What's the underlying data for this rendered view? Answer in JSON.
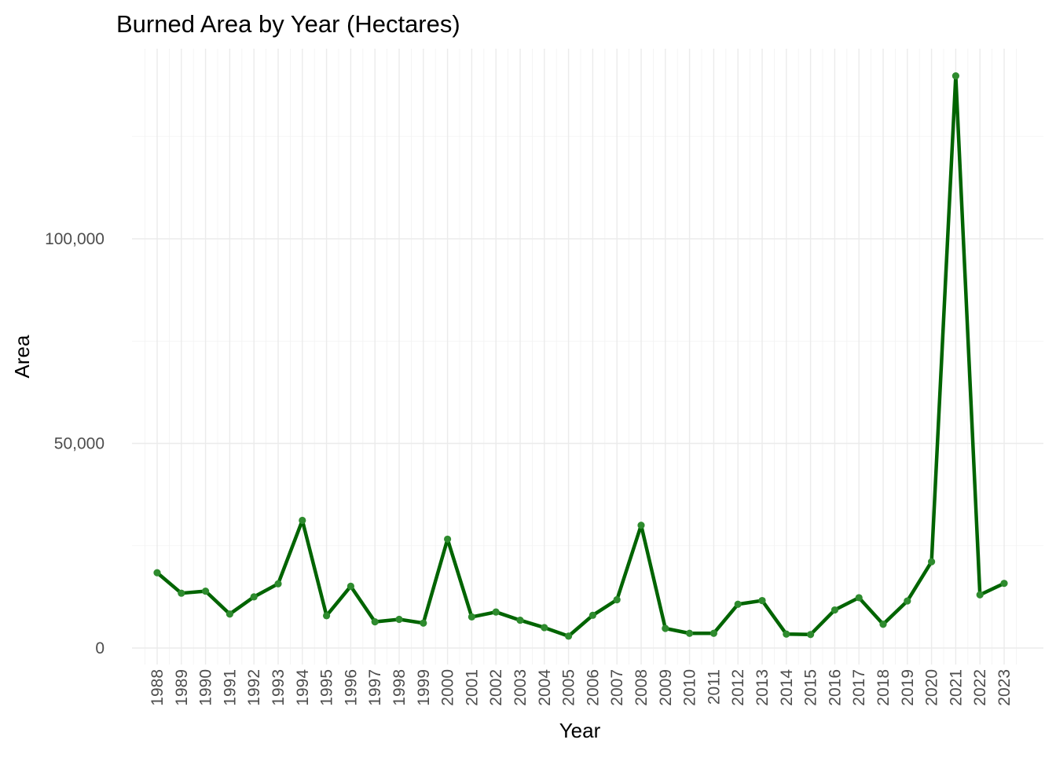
{
  "chart_data": {
    "type": "line",
    "title": "Burned Area by Year (Hectares)",
    "xlabel": "Year",
    "ylabel": "Area",
    "x": [
      1988,
      1989,
      1990,
      1991,
      1992,
      1993,
      1994,
      1995,
      1996,
      1997,
      1998,
      1999,
      2000,
      2001,
      2002,
      2003,
      2004,
      2005,
      2006,
      2007,
      2008,
      2009,
      2010,
      2011,
      2012,
      2013,
      2014,
      2015,
      2016,
      2017,
      2018,
      2019,
      2020,
      2021,
      2022,
      2023
    ],
    "x_tick_labels": [
      "1988",
      "1989",
      "1990",
      "1991",
      "1992",
      "1993",
      "1994",
      "1995",
      "1996",
      "1997",
      "1998",
      "1999",
      "2000",
      "2001",
      "2002",
      "2003",
      "2004",
      "2005",
      "2006",
      "2007",
      "2008",
      "2009",
      "2010",
      "2011",
      "2012",
      "2013",
      "2014",
      "2015",
      "2016",
      "2017",
      "2018",
      "2019",
      "2020",
      "2021",
      "2022",
      "2023"
    ],
    "y_ticks": [
      0,
      50000,
      100000
    ],
    "y_tick_labels": [
      "0",
      "50,000",
      "100,000"
    ],
    "ylim": [
      -3500,
      147000
    ],
    "grid": true,
    "legend": "none",
    "series": [
      {
        "values": [
          18400,
          13400,
          13900,
          8300,
          12500,
          15700,
          31200,
          7900,
          15100,
          6400,
          7000,
          6100,
          26600,
          7600,
          8800,
          6800,
          5000,
          2900,
          8000,
          11800,
          30000,
          4800,
          3600,
          3600,
          10700,
          11600,
          3400,
          3300,
          9300,
          12300,
          5800,
          11500,
          21100,
          139800,
          13000,
          15800
        ],
        "line_color": "#006400",
        "point_color": "#2e8b2e"
      }
    ]
  }
}
